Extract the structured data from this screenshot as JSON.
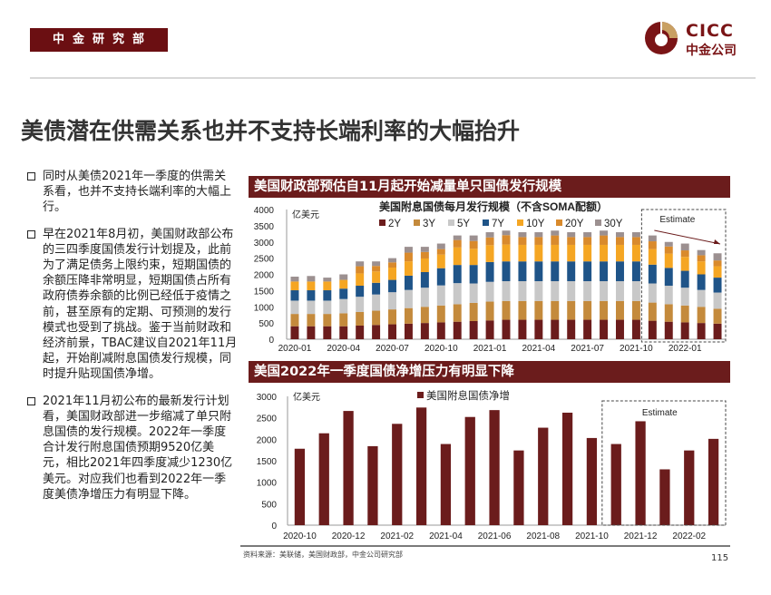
{
  "header": {
    "department": "中金研究部",
    "logo_en": "CICC",
    "logo_cn": "中金公司",
    "colors": {
      "brand": "#6b0f12",
      "gold": "#c9a063"
    }
  },
  "title": "美债潜在供需关系也并不支持长端利率的大幅抬升",
  "bullets": [
    "同时从美债2021年一季度的供需关系看，也并不支持长端利率的大幅上行。",
    "早在2021年8月初，美国财政部公布的三四季度国债发行计划提及，此前为了满足债务上限约束，短期国债的余额压降非常明显，短期国债占所有政府债券余额的比例已经低于疫情之前，甚至原有的定期、可预测的发行模式也受到了挑战。鉴于当前财政和经济前景，TBAC建议自2021年11月起，开始削减附息国债发行规模，同时提升贴现国债净增。",
    "2021年11月初公布的最新发行计划看，美国财政部进一步缩减了单只附息国债的发行规模。2022年一季度合计发行附息国债预期9520亿美元，相比2021年四季度减少1230亿美元。对应我们也看到2022年一季度美债净增压力有明显下降。"
  ],
  "footer": {
    "source": "资料来源：美联储，美国财政部，中金公司研究部",
    "page": "115"
  },
  "chart_data": [
    {
      "type": "bar",
      "stacked": true,
      "panel_title": "美国财政部预估自11月起开始减量单只国债发行规模",
      "title": "美国附息国债每月发行规模（不含SOMA配额）",
      "ylabel": "亿美元",
      "ylim": [
        0,
        4000
      ],
      "yticks": [
        0,
        500,
        1000,
        1500,
        2000,
        2500,
        3000,
        3500,
        4000
      ],
      "xtick_labels": [
        "2020-01",
        "2020-04",
        "2020-07",
        "2020-10",
        "2021-01",
        "2021-04",
        "2021-07",
        "2021-10",
        "2022-01"
      ],
      "legend_position": "top",
      "annotation": "Estimate",
      "estimate_start": "2021-11",
      "categories": [
        "2020-01",
        "2020-02",
        "2020-03",
        "2020-04",
        "2020-05",
        "2020-06",
        "2020-07",
        "2020-08",
        "2020-09",
        "2020-10",
        "2020-11",
        "2020-12",
        "2021-01",
        "2021-02",
        "2021-03",
        "2021-04",
        "2021-05",
        "2021-06",
        "2021-07",
        "2021-08",
        "2021-09",
        "2021-10",
        "2021-11",
        "2021-12",
        "2022-01",
        "2022-02",
        "2022-03"
      ],
      "series": [
        {
          "name": "2Y",
          "color": "#6b1c1c",
          "values": [
            400,
            400,
            400,
            400,
            420,
            440,
            460,
            480,
            500,
            520,
            540,
            560,
            580,
            600,
            600,
            600,
            600,
            600,
            600,
            600,
            600,
            600,
            570,
            540,
            520,
            500,
            480
          ]
        },
        {
          "name": "3Y",
          "color": "#c48a3c",
          "values": [
            380,
            380,
            380,
            400,
            420,
            440,
            460,
            480,
            500,
            520,
            540,
            560,
            580,
            580,
            580,
            580,
            580,
            580,
            580,
            580,
            580,
            580,
            560,
            540,
            520,
            500,
            460
          ]
        },
        {
          "name": "5Y",
          "color": "#c8c8c8",
          "values": [
            410,
            410,
            410,
            440,
            470,
            500,
            530,
            560,
            590,
            620,
            650,
            600,
            610,
            610,
            610,
            610,
            610,
            610,
            610,
            610,
            610,
            610,
            590,
            570,
            550,
            520,
            500
          ]
        },
        {
          "name": "7Y",
          "color": "#1f5488",
          "values": [
            320,
            320,
            320,
            320,
            340,
            360,
            380,
            440,
            480,
            530,
            560,
            570,
            610,
            610,
            610,
            610,
            610,
            610,
            610,
            610,
            610,
            610,
            580,
            550,
            520,
            480,
            460
          ]
        },
        {
          "name": "10Y",
          "color": "#f5a623",
          "values": [
            270,
            270,
            270,
            270,
            380,
            350,
            380,
            440,
            420,
            420,
            540,
            500,
            520,
            520,
            510,
            510,
            510,
            510,
            510,
            510,
            510,
            510,
            480,
            440,
            430,
            400,
            350
          ]
        },
        {
          "name": "20Y",
          "color": "#d98a2c",
          "values": [
            0,
            0,
            0,
            0,
            220,
            170,
            160,
            270,
            200,
            170,
            230,
            240,
            240,
            290,
            240,
            240,
            290,
            240,
            240,
            290,
            240,
            240,
            240,
            220,
            200,
            190,
            180
          ]
        },
        {
          "name": "30Y",
          "color": "#9c9090",
          "values": [
            150,
            170,
            120,
            170,
            150,
            140,
            130,
            180,
            160,
            170,
            140,
            170,
            160,
            140,
            150,
            150,
            150,
            150,
            150,
            150,
            150,
            150,
            180,
            140,
            210,
            160,
            220
          ]
        }
      ]
    },
    {
      "type": "bar",
      "panel_title": "美国2022年一季度国债净增压力有明显下降",
      "ylabel": "亿美元",
      "ylim": [
        0,
        3000
      ],
      "yticks": [
        0,
        500,
        1000,
        1500,
        2000,
        2500,
        3000
      ],
      "xtick_labels": [
        "2020-10",
        "2020-12",
        "2021-02",
        "2021-04",
        "2021-06",
        "2021-08",
        "2021-10",
        "2021-12",
        "2022-02"
      ],
      "legend_position": "top",
      "annotation": "Estimate",
      "estimate_start": "2021-11",
      "categories": [
        "2020-10",
        "2020-11",
        "2020-12",
        "2021-01",
        "2021-02",
        "2021-03",
        "2021-04",
        "2021-05",
        "2021-06",
        "2021-07",
        "2021-08",
        "2021-09",
        "2021-10",
        "2021-11",
        "2021-12",
        "2022-01",
        "2022-02",
        "2022-03"
      ],
      "series": [
        {
          "name": "美国附息国债净增",
          "color": "#6b1c1c",
          "values": [
            1780,
            2140,
            2660,
            1840,
            2360,
            2740,
            1890,
            2520,
            2680,
            1740,
            2270,
            2620,
            2030,
            1890,
            2420,
            1300,
            1740,
            2010
          ]
        }
      ]
    }
  ]
}
